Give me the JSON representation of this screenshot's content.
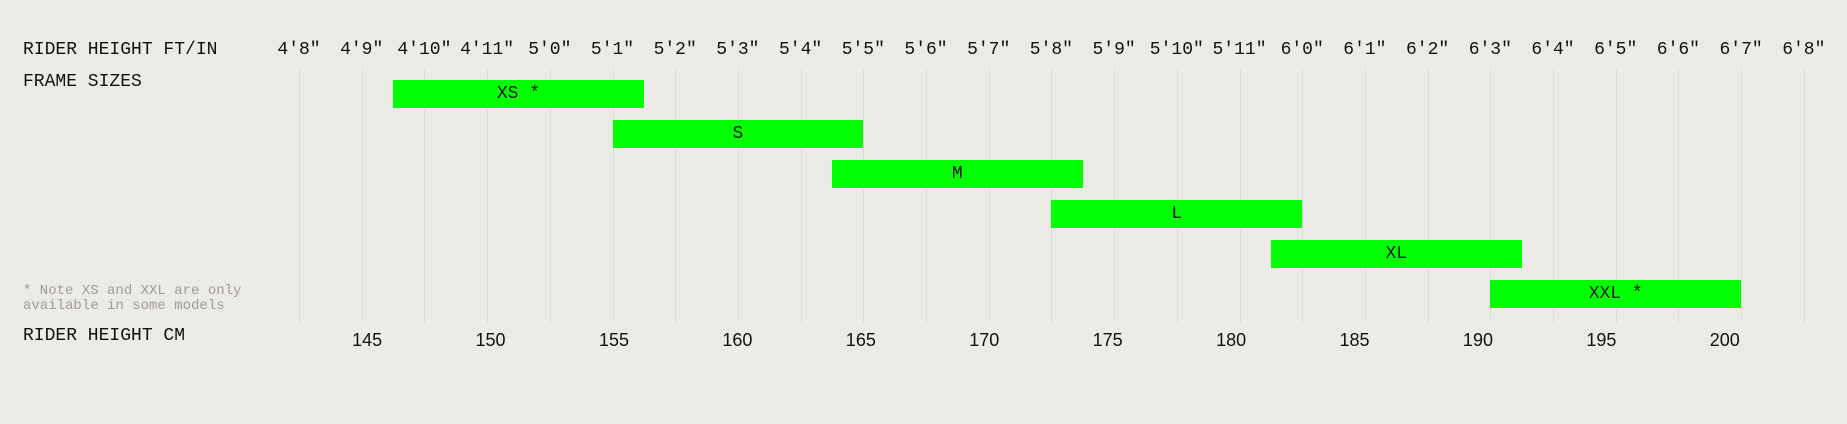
{
  "labels": {
    "ft_axis": "RIDER HEIGHT FT/IN",
    "frames": "FRAME SIZES",
    "cm_axis": "RIDER HEIGHT CM",
    "note": "* Note XS and XXL are only available in some models"
  },
  "colors": {
    "background": "#ebeae6",
    "bar": "#00ff00",
    "note": "#9d9b92",
    "grid": "#dcdbd6"
  },
  "chart_data": {
    "type": "bar",
    "orientation": "horizontal-range",
    "grid": true,
    "x_top_ticks": [
      "4'8\"",
      "4'9\"",
      "4'10\"",
      "4'11\"",
      "5'0\"",
      "5'1\"",
      "5'2\"",
      "5'3\"",
      "5'4\"",
      "5'5\"",
      "5'6\"",
      "5'7\"",
      "5'8\"",
      "5'9\"",
      "5'10\"",
      "5'11\"",
      "6'0\"",
      "6'1\"",
      "6'2\"",
      "6'3\"",
      "6'4\"",
      "6'5\"",
      "6'6\"",
      "6'7\"",
      "6'8\""
    ],
    "x_bottom_ticks": [
      "145",
      "150",
      "155",
      "160",
      "165",
      "170",
      "175",
      "180",
      "185",
      "190",
      "195",
      "200"
    ],
    "xlim_in": [
      56,
      80
    ],
    "series": [
      {
        "label": "XS *",
        "start_in": 57.5,
        "end_in": 61.5
      },
      {
        "label": "S",
        "start_in": 61,
        "end_in": 65
      },
      {
        "label": "M",
        "start_in": 64.5,
        "end_in": 68.5
      },
      {
        "label": "L",
        "start_in": 68,
        "end_in": 72
      },
      {
        "label": "XL",
        "start_in": 71.5,
        "end_in": 75.5
      },
      {
        "label": "XXL *",
        "start_in": 75,
        "end_in": 79
      }
    ]
  }
}
